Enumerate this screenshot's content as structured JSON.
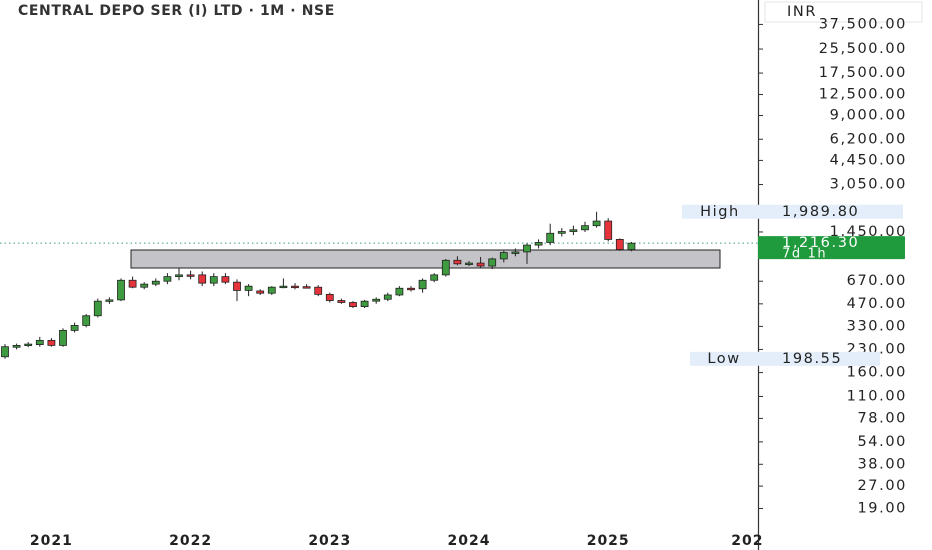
{
  "chart_data": {
    "type": "candlestick",
    "title": "CENTRAL DEPO SER (I) LTD · 1M · NSE",
    "currency": "INR",
    "categories": [
      null,
      null,
      null,
      null,
      "2021",
      null,
      null,
      null,
      null,
      null,
      null,
      null,
      null,
      null,
      null,
      null,
      "2022",
      null,
      null,
      null,
      null,
      null,
      null,
      null,
      null,
      null,
      null,
      null,
      "2023",
      null,
      null,
      null,
      null,
      null,
      null,
      null,
      null,
      null,
      null,
      null,
      "2024",
      null,
      null,
      null,
      null,
      null,
      null,
      null,
      null,
      null,
      null,
      null,
      "2025",
      null,
      null,
      null,
      null,
      null,
      null,
      null,
      null,
      null,
      null,
      null,
      "202"
    ],
    "open": [
      205,
      238,
      245,
      248,
      265,
      245,
      310,
      335,
      390,
      490,
      500,
      680,
      610,
      640,
      670,
      720,
      740,
      740,
      650,
      720,
      660,
      580,
      575,
      555,
      610,
      620,
      615,
      610,
      545,
      495,
      480,
      450,
      490,
      505,
      540,
      600,
      595,
      680,
      740,
      930,
      880,
      890,
      850,
      950,
      1050,
      1060,
      1180,
      1230,
      1420,
      1460,
      1500,
      1600,
      1720,
      1290,
      1100,
      null,
      null,
      null,
      null,
      null,
      null,
      null,
      null,
      null,
      null
    ],
    "high": [
      250,
      252,
      258,
      280,
      275,
      320,
      350,
      400,
      510,
      520,
      700,
      720,
      660,
      700,
      760,
      820,
      790,
      780,
      760,
      760,
      690,
      640,
      590,
      620,
      700,
      650,
      640,
      630,
      560,
      510,
      490,
      500,
      520,
      560,
      620,
      620,
      700,
      760,
      950,
      990,
      920,
      980,
      970,
      1080,
      1120,
      1210,
      1290,
      1650,
      1540,
      1600,
      1700,
      1989.8,
      1800,
      1310,
      1240,
      null,
      null,
      null,
      null,
      null,
      null,
      null,
      null,
      null,
      null
    ],
    "low": [
      198.55,
      230,
      238,
      240,
      240,
      240,
      300,
      325,
      380,
      470,
      490,
      600,
      590,
      620,
      640,
      680,
      690,
      620,
      620,
      640,
      490,
      530,
      540,
      540,
      600,
      590,
      600,
      530,
      480,
      470,
      440,
      440,
      470,
      490,
      530,
      570,
      560,
      660,
      720,
      860,
      850,
      830,
      810,
      900,
      990,
      880,
      1120,
      1180,
      1350,
      1380,
      1450,
      1550,
      1250,
      1080,
      1070,
      null,
      null,
      null,
      null,
      null,
      null,
      null,
      null,
      null,
      null
    ],
    "close": [
      240,
      245,
      250,
      265,
      245,
      310,
      335,
      390,
      490,
      500,
      680,
      610,
      640,
      670,
      720,
      740,
      730,
      650,
      720,
      660,
      580,
      620,
      555,
      610,
      620,
      615,
      610,
      545,
      495,
      480,
      450,
      490,
      505,
      540,
      600,
      595,
      680,
      740,
      930,
      880,
      890,
      850,
      950,
      1050,
      1060,
      1180,
      1230,
      1420,
      1460,
      1500,
      1600,
      1720,
      1290,
      1100,
      1216.3,
      null,
      null,
      null,
      null,
      null,
      null,
      null,
      null,
      null,
      null
    ],
    "up_color": "#3f9b3f",
    "down_color": "#e5333b",
    "log_scale": true,
    "ylim": [
      14,
      55000
    ],
    "yticks": [
      {
        "value": 37500,
        "label": "37,500.00"
      },
      {
        "value": 25500,
        "label": "25,500.00"
      },
      {
        "value": 17500,
        "label": "17,500.00"
      },
      {
        "value": 12500,
        "label": "12,500.00"
      },
      {
        "value": 9000,
        "label": "9,000.00"
      },
      {
        "value": 6200,
        "label": "6,200.00"
      },
      {
        "value": 4450,
        "label": "4,450.00"
      },
      {
        "value": 3050,
        "label": "3,050.00"
      },
      {
        "value": 1450,
        "label": "1,450.00"
      },
      {
        "value": 670,
        "label": "670.00"
      },
      {
        "value": 470,
        "label": "470.00"
      },
      {
        "value": 330,
        "label": "330.00"
      },
      {
        "value": 230,
        "label": "230.00"
      },
      {
        "value": 160,
        "label": "160.00"
      },
      {
        "value": 110,
        "label": "110.00"
      },
      {
        "value": 78,
        "label": "78.00"
      },
      {
        "value": 54,
        "label": "54.00"
      },
      {
        "value": 38,
        "label": "38.00"
      },
      {
        "value": 27,
        "label": "27.00"
      },
      {
        "value": 19,
        "label": "19.00"
      }
    ],
    "high_marker": {
      "name": "High",
      "value": 1989.8,
      "label": "1,989.80"
    },
    "low_marker": {
      "name": "Low",
      "value": 198.55,
      "label": "198.55"
    },
    "last_price": {
      "value": 1216.3,
      "label": "1,216.30"
    },
    "countdown": "7d 1h"
  }
}
